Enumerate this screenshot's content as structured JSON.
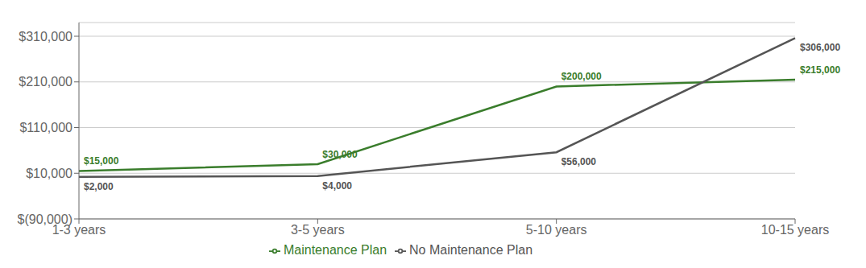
{
  "chart_data": {
    "type": "line",
    "categories": [
      "1-3 years",
      "3-5 years",
      "5-10 years",
      "10-15 years"
    ],
    "series": [
      {
        "name": "Maintenance Plan",
        "color": "#3a7d2c",
        "values": [
          15000,
          30000,
          200000,
          215000
        ],
        "value_labels": [
          "$15,000",
          "$30,000",
          "$200,000",
          "$215,000"
        ]
      },
      {
        "name": "No Maintenance Plan",
        "color": "#555555",
        "values": [
          2000,
          4000,
          56000,
          306000
        ],
        "value_labels": [
          "$2,000",
          "$4,000",
          "$56,000",
          "$306,000"
        ]
      }
    ],
    "ylim": [
      -90000,
      340000
    ],
    "yticks": [
      {
        "value": -90000,
        "label": "$(90,000)"
      },
      {
        "value": 10000,
        "label": "$10,000"
      },
      {
        "value": 110000,
        "label": "$110,000"
      },
      {
        "value": 210000,
        "label": "$210,000"
      },
      {
        "value": 310000,
        "label": "$310,000"
      }
    ],
    "grid": true,
    "legend": "bottom",
    "data_labels": true
  }
}
